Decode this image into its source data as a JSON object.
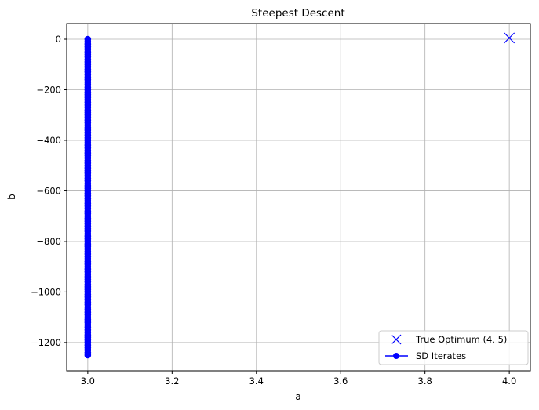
{
  "chart_data": {
    "type": "line",
    "title": "Steepest Descent",
    "xlabel": "a",
    "ylabel": "b",
    "xlim": [
      2.95,
      4.05
    ],
    "ylim": [
      -1312,
      62
    ],
    "xticks": [
      3.0,
      3.2,
      3.4,
      3.6,
      3.8,
      4.0
    ],
    "xtick_labels": [
      "3.0",
      "3.2",
      "3.4",
      "3.6",
      "3.8",
      "4.0"
    ],
    "yticks": [
      0,
      -200,
      -400,
      -600,
      -800,
      -1000,
      -1200
    ],
    "ytick_labels": [
      "0",
      "−200",
      "−400",
      "−600",
      "−800",
      "−1000",
      "−1200"
    ],
    "grid": true,
    "legend_position": "lower-right",
    "series": [
      {
        "name": "True Optimum (4, 5)",
        "kind": "marker",
        "marker": "x",
        "color": "#0000ff",
        "x": [
          4.0
        ],
        "y": [
          5
        ]
      },
      {
        "name": "SD Iterates",
        "kind": "line-marker",
        "marker": "circle",
        "color": "#0000ff",
        "x_const": 3.0,
        "y_start": 0,
        "y_end": -1250,
        "point_count": 126
      }
    ]
  }
}
